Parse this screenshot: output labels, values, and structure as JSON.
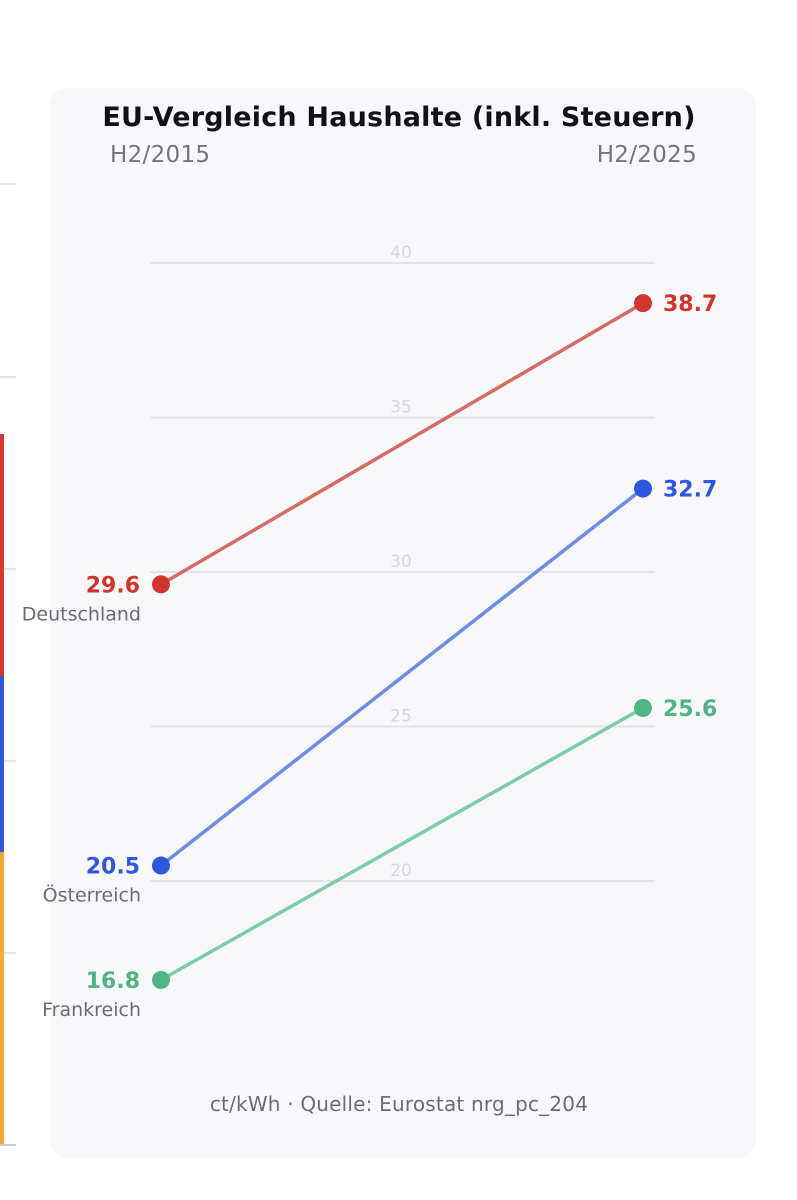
{
  "title": "EU-Vergleich Haushalte (inkl. Steuern)",
  "period_start": "H2/2015",
  "period_end": "H2/2025",
  "footer": "ct/kWh · Quelle: Eurostat nrg_pc_204",
  "colors": {
    "background": "#ffffff",
    "card": "#f8f8fa",
    "grid": "#e4e4e8",
    "tick_label": "#d8d8dc",
    "country_label": "#6b6b73"
  },
  "left_panel_fragment": {
    "bar_colors": [
      "#d23a2f",
      "#3358d4",
      "#f0a93a"
    ]
  },
  "chart_data": {
    "type": "line",
    "title": "EU-Vergleich Haushalte (inkl. Steuern)",
    "unit": "ct/kWh",
    "x": [
      "H2/2015",
      "H2/2025"
    ],
    "yticks": [
      20,
      25,
      30,
      35,
      40
    ],
    "ylim": [
      16.8,
      40
    ],
    "grid": true,
    "series": [
      {
        "name": "Deutschland",
        "values": [
          29.6,
          38.7
        ],
        "value_labels": [
          "29.6",
          "38.7"
        ],
        "color": "#d0362d",
        "line_color": "#d46a64"
      },
      {
        "name": "Österreich",
        "values": [
          20.5,
          32.7
        ],
        "value_labels": [
          "20.5",
          "32.7"
        ],
        "color": "#2f56dc",
        "line_color": "#6c8de3"
      },
      {
        "name": "Frankreich",
        "values": [
          16.8,
          25.6
        ],
        "value_labels": [
          "16.8",
          "25.6"
        ],
        "color": "#4fb583",
        "line_color": "#7ccda5"
      }
    ]
  }
}
